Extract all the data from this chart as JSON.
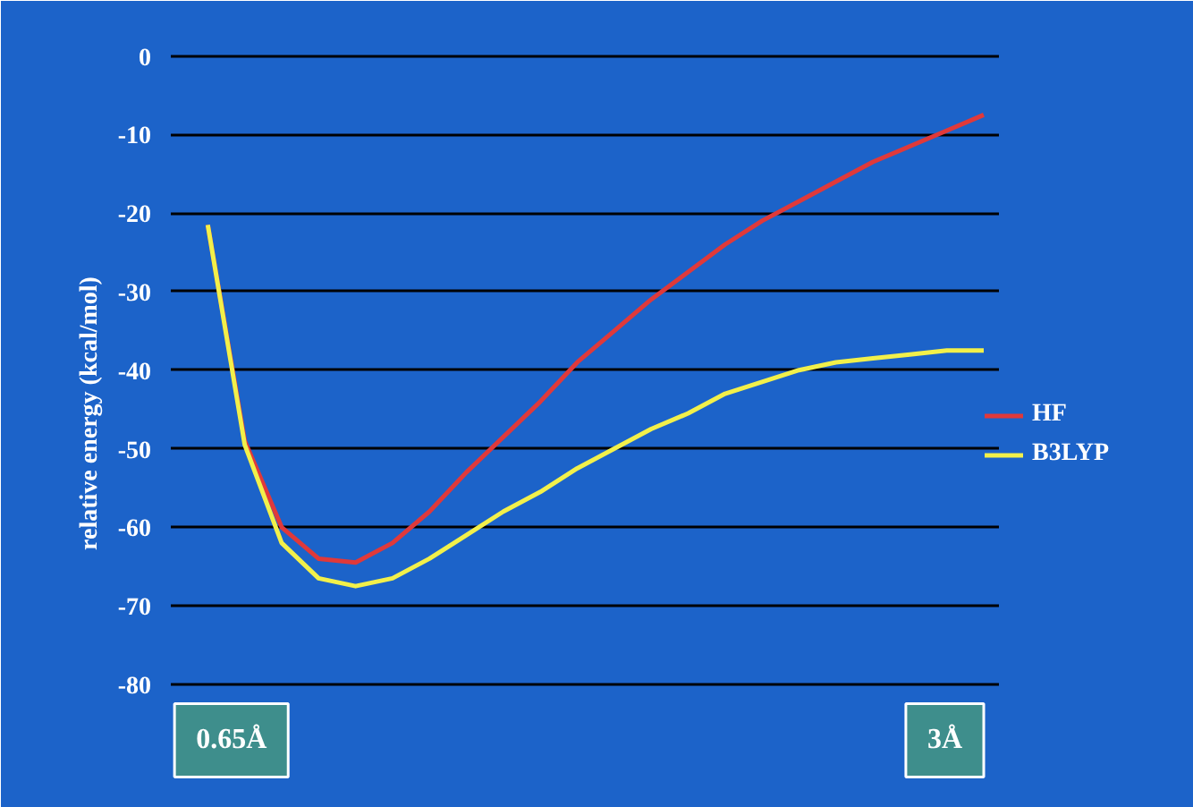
{
  "chart_data": {
    "type": "line",
    "ylabel": "relative energy (kcal/mol)",
    "categories": [
      null,
      null,
      null,
      null,
      null,
      null,
      null,
      null,
      null,
      null,
      null,
      null,
      null,
      null,
      null,
      null,
      null,
      null,
      null,
      null,
      null,
      null
    ],
    "series": [
      {
        "name": "HF",
        "color": "#e0393a",
        "values": [
          -21.5,
          -49,
          -60,
          -64,
          -64.5,
          -62,
          -58,
          -53,
          -48.5,
          -44,
          -39,
          -35,
          -31,
          -27.5,
          -24,
          -21,
          -18.5,
          -16,
          -13.5,
          -11.5,
          -9.5,
          -7.5
        ]
      },
      {
        "name": "B3LYP",
        "color": "#f2f04a",
        "values": [
          -21.5,
          -49.5,
          -62,
          -66.5,
          -67.5,
          -66.5,
          -64,
          -61,
          -58,
          -55.5,
          -52.5,
          -50,
          -47.5,
          -45.5,
          -43,
          -41.5,
          -40,
          -39,
          -38.5,
          -38,
          -37.5,
          -37.5
        ]
      }
    ],
    "ylim": [
      -93,
      2
    ],
    "yticks": [
      0,
      -10,
      -20,
      -30,
      -40,
      -50,
      -60,
      -70,
      -80
    ],
    "grid": "y",
    "legend": "right",
    "tick_labels": "y",
    "marker": "none",
    "line_style": "solid",
    "annotations": [
      "0.65Å",
      "3Å"
    ]
  }
}
